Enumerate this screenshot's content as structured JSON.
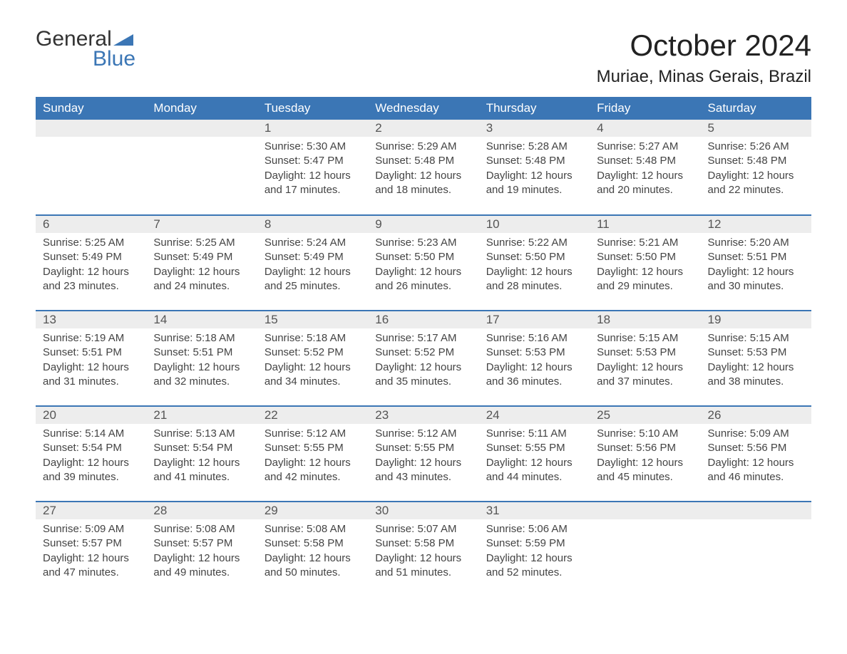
{
  "logo": {
    "general": "General",
    "blue": "Blue",
    "sail_color": "#3b76b5"
  },
  "title": "October 2024",
  "location": "Muriae, Minas Gerais, Brazil",
  "day_headers": [
    "Sunday",
    "Monday",
    "Tuesday",
    "Wednesday",
    "Thursday",
    "Friday",
    "Saturday"
  ],
  "colors": {
    "header_bg": "#3b76b5",
    "header_text": "#ffffff",
    "daynum_bg": "#ededed",
    "row_border": "#3b76b5",
    "body_text": "#444444",
    "background": "#ffffff"
  },
  "fonts": {
    "title_size_pt": 32,
    "location_size_pt": 18,
    "header_size_pt": 13,
    "daynum_size_pt": 13,
    "body_size_pt": 11
  },
  "weeks": [
    [
      null,
      null,
      {
        "n": "1",
        "sunrise": "5:30 AM",
        "sunset": "5:47 PM",
        "daylight": "12 hours and 17 minutes."
      },
      {
        "n": "2",
        "sunrise": "5:29 AM",
        "sunset": "5:48 PM",
        "daylight": "12 hours and 18 minutes."
      },
      {
        "n": "3",
        "sunrise": "5:28 AM",
        "sunset": "5:48 PM",
        "daylight": "12 hours and 19 minutes."
      },
      {
        "n": "4",
        "sunrise": "5:27 AM",
        "sunset": "5:48 PM",
        "daylight": "12 hours and 20 minutes."
      },
      {
        "n": "5",
        "sunrise": "5:26 AM",
        "sunset": "5:48 PM",
        "daylight": "12 hours and 22 minutes."
      }
    ],
    [
      {
        "n": "6",
        "sunrise": "5:25 AM",
        "sunset": "5:49 PM",
        "daylight": "12 hours and 23 minutes."
      },
      {
        "n": "7",
        "sunrise": "5:25 AM",
        "sunset": "5:49 PM",
        "daylight": "12 hours and 24 minutes."
      },
      {
        "n": "8",
        "sunrise": "5:24 AM",
        "sunset": "5:49 PM",
        "daylight": "12 hours and 25 minutes."
      },
      {
        "n": "9",
        "sunrise": "5:23 AM",
        "sunset": "5:50 PM",
        "daylight": "12 hours and 26 minutes."
      },
      {
        "n": "10",
        "sunrise": "5:22 AM",
        "sunset": "5:50 PM",
        "daylight": "12 hours and 28 minutes."
      },
      {
        "n": "11",
        "sunrise": "5:21 AM",
        "sunset": "5:50 PM",
        "daylight": "12 hours and 29 minutes."
      },
      {
        "n": "12",
        "sunrise": "5:20 AM",
        "sunset": "5:51 PM",
        "daylight": "12 hours and 30 minutes."
      }
    ],
    [
      {
        "n": "13",
        "sunrise": "5:19 AM",
        "sunset": "5:51 PM",
        "daylight": "12 hours and 31 minutes."
      },
      {
        "n": "14",
        "sunrise": "5:18 AM",
        "sunset": "5:51 PM",
        "daylight": "12 hours and 32 minutes."
      },
      {
        "n": "15",
        "sunrise": "5:18 AM",
        "sunset": "5:52 PM",
        "daylight": "12 hours and 34 minutes."
      },
      {
        "n": "16",
        "sunrise": "5:17 AM",
        "sunset": "5:52 PM",
        "daylight": "12 hours and 35 minutes."
      },
      {
        "n": "17",
        "sunrise": "5:16 AM",
        "sunset": "5:53 PM",
        "daylight": "12 hours and 36 minutes."
      },
      {
        "n": "18",
        "sunrise": "5:15 AM",
        "sunset": "5:53 PM",
        "daylight": "12 hours and 37 minutes."
      },
      {
        "n": "19",
        "sunrise": "5:15 AM",
        "sunset": "5:53 PM",
        "daylight": "12 hours and 38 minutes."
      }
    ],
    [
      {
        "n": "20",
        "sunrise": "5:14 AM",
        "sunset": "5:54 PM",
        "daylight": "12 hours and 39 minutes."
      },
      {
        "n": "21",
        "sunrise": "5:13 AM",
        "sunset": "5:54 PM",
        "daylight": "12 hours and 41 minutes."
      },
      {
        "n": "22",
        "sunrise": "5:12 AM",
        "sunset": "5:55 PM",
        "daylight": "12 hours and 42 minutes."
      },
      {
        "n": "23",
        "sunrise": "5:12 AM",
        "sunset": "5:55 PM",
        "daylight": "12 hours and 43 minutes."
      },
      {
        "n": "24",
        "sunrise": "5:11 AM",
        "sunset": "5:55 PM",
        "daylight": "12 hours and 44 minutes."
      },
      {
        "n": "25",
        "sunrise": "5:10 AM",
        "sunset": "5:56 PM",
        "daylight": "12 hours and 45 minutes."
      },
      {
        "n": "26",
        "sunrise": "5:09 AM",
        "sunset": "5:56 PM",
        "daylight": "12 hours and 46 minutes."
      }
    ],
    [
      {
        "n": "27",
        "sunrise": "5:09 AM",
        "sunset": "5:57 PM",
        "daylight": "12 hours and 47 minutes."
      },
      {
        "n": "28",
        "sunrise": "5:08 AM",
        "sunset": "5:57 PM",
        "daylight": "12 hours and 49 minutes."
      },
      {
        "n": "29",
        "sunrise": "5:08 AM",
        "sunset": "5:58 PM",
        "daylight": "12 hours and 50 minutes."
      },
      {
        "n": "30",
        "sunrise": "5:07 AM",
        "sunset": "5:58 PM",
        "daylight": "12 hours and 51 minutes."
      },
      {
        "n": "31",
        "sunrise": "5:06 AM",
        "sunset": "5:59 PM",
        "daylight": "12 hours and 52 minutes."
      },
      null,
      null
    ]
  ],
  "labels": {
    "sunrise_prefix": "Sunrise: ",
    "sunset_prefix": "Sunset: ",
    "daylight_prefix": "Daylight: "
  }
}
